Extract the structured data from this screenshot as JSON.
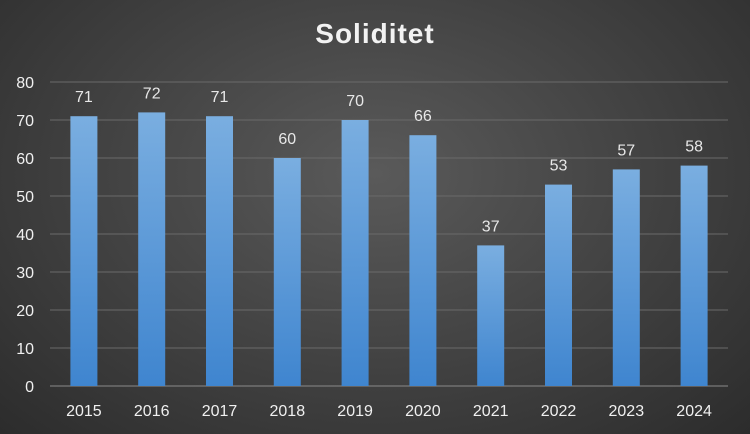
{
  "chart_data": {
    "type": "bar",
    "title": "Soliditet",
    "xlabel": "",
    "ylabel": "",
    "categories": [
      "2015",
      "2016",
      "2017",
      "2018",
      "2019",
      "2020",
      "2021",
      "2022",
      "2023",
      "2024"
    ],
    "values": [
      71,
      72,
      71,
      60,
      70,
      66,
      37,
      53,
      57,
      58
    ],
    "data_labels": [
      "71",
      "72",
      "71",
      "60",
      "70",
      "66",
      "37",
      "53",
      "57",
      "58"
    ],
    "ylim": [
      0,
      80
    ],
    "yticks": [
      "0",
      "10",
      "20",
      "30",
      "40",
      "50",
      "60",
      "70",
      "80"
    ],
    "grid": true,
    "legend": "none",
    "colors": {
      "bar_top": "#7aaee0",
      "bar_bottom": "#3f85cf",
      "text": "#f0f0f0"
    }
  }
}
